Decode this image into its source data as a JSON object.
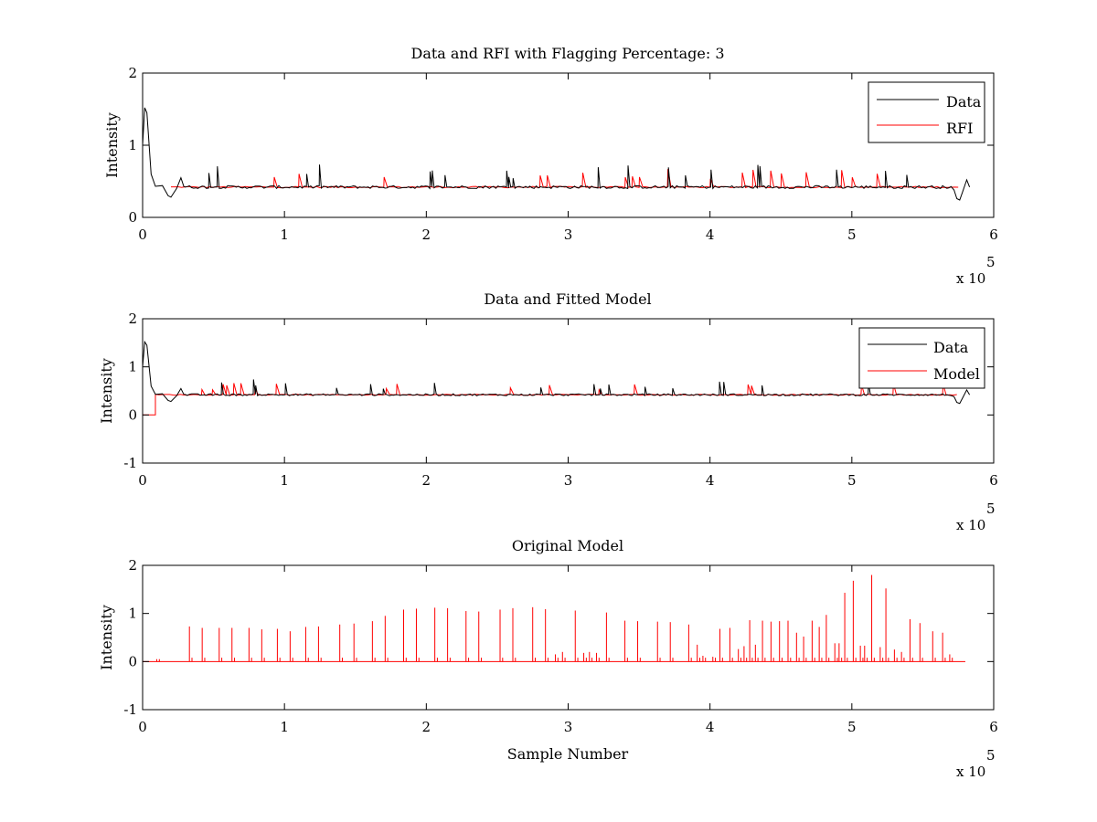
{
  "chart_data": [
    {
      "type": "line",
      "title": "Data and RFI with Flagging Percentage: 3",
      "xlabel": "",
      "ylabel": "Intensity",
      "xlim": [
        0,
        600000
      ],
      "ylim": [
        0,
        2
      ],
      "xticks": [
        "0",
        "1",
        "2",
        "3",
        "4",
        "5",
        "6"
      ],
      "yticks": [
        "0",
        "1",
        "2"
      ],
      "x_exponent_base": "x 10",
      "x_exponent_power": "5",
      "legend": {
        "position": "top-right",
        "entries": [
          "Data",
          "RFI"
        ]
      },
      "grid": false,
      "series": [
        {
          "name": "Data",
          "color": "#000000",
          "baseline": 0.42,
          "features": {
            "start_peak": 1.52,
            "start_dip": 0.28,
            "end_dip": 0.24,
            "end_value": 0.52
          }
        },
        {
          "name": "RFI",
          "color": "#ff0000",
          "baseline": 0.42
        }
      ]
    },
    {
      "type": "line",
      "title": "Data and Fitted Model",
      "xlabel": "",
      "ylabel": "Intensity",
      "xlim": [
        0,
        600000
      ],
      "ylim": [
        -1,
        2
      ],
      "xticks": [
        "0",
        "1",
        "2",
        "3",
        "4",
        "5",
        "6"
      ],
      "yticks": [
        "-1",
        "0",
        "1",
        "2"
      ],
      "x_exponent_base": "x 10",
      "x_exponent_power": "5",
      "legend": {
        "position": "top-right",
        "entries": [
          "Data",
          "Model"
        ]
      },
      "grid": false,
      "series": [
        {
          "name": "Data",
          "color": "#000000",
          "baseline": 0.42
        },
        {
          "name": "Model",
          "color": "#ff0000",
          "baseline": 0.42,
          "initial_value": 0.0,
          "step_at": 9000
        }
      ]
    },
    {
      "type": "line",
      "title": "Original Model",
      "xlabel": "Sample Number",
      "ylabel": "Intensity",
      "xlim": [
        0,
        600000
      ],
      "ylim": [
        -1,
        2
      ],
      "xticks": [
        "0",
        "1",
        "2",
        "3",
        "4",
        "5",
        "6"
      ],
      "yticks": [
        "-1",
        "0",
        "1",
        "2"
      ],
      "x_exponent_base": "x 10",
      "x_exponent_power": "5",
      "grid": false,
      "series": [
        {
          "color": "#ff0000",
          "baseline": 0.0,
          "x_end": 580000,
          "spikes": [
            [
              10000,
              0.05
            ],
            [
              33000,
              0.73
            ],
            [
              42000,
              0.7
            ],
            [
              54000,
              0.7
            ],
            [
              63000,
              0.7
            ],
            [
              75000,
              0.7
            ],
            [
              84000,
              0.67
            ],
            [
              95000,
              0.68
            ],
            [
              104000,
              0.63
            ],
            [
              115000,
              0.72
            ],
            [
              124000,
              0.73
            ],
            [
              139000,
              0.77
            ],
            [
              149000,
              0.79
            ],
            [
              162000,
              0.84
            ],
            [
              171000,
              0.95
            ],
            [
              184000,
              1.08
            ],
            [
              193000,
              1.1
            ],
            [
              206000,
              1.12
            ],
            [
              215000,
              1.11
            ],
            [
              228000,
              1.05
            ],
            [
              237000,
              1.04
            ],
            [
              252000,
              1.08
            ],
            [
              261000,
              1.11
            ],
            [
              275000,
              1.13
            ],
            [
              284000,
              1.09
            ],
            [
              291000,
              0.15
            ],
            [
              296000,
              0.2
            ],
            [
              305000,
              1.06
            ],
            [
              311000,
              0.18
            ],
            [
              315000,
              0.2
            ],
            [
              320000,
              0.18
            ],
            [
              327000,
              1.02
            ],
            [
              340000,
              0.85
            ],
            [
              349000,
              0.84
            ],
            [
              363000,
              0.83
            ],
            [
              372000,
              0.82
            ],
            [
              385000,
              0.77
            ],
            [
              391000,
              0.35
            ],
            [
              395000,
              0.12
            ],
            [
              402000,
              0.1
            ],
            [
              407000,
              0.68
            ],
            [
              414000,
              0.7
            ],
            [
              420000,
              0.26
            ],
            [
              424000,
              0.32
            ],
            [
              428000,
              0.86
            ],
            [
              432000,
              0.35
            ],
            [
              437000,
              0.85
            ],
            [
              443000,
              0.83
            ],
            [
              449000,
              0.84
            ],
            [
              455000,
              0.85
            ],
            [
              461000,
              0.6
            ],
            [
              466000,
              0.52
            ],
            [
              472000,
              0.85
            ],
            [
              477000,
              0.72
            ],
            [
              482000,
              0.97
            ],
            [
              488000,
              0.38
            ],
            [
              491000,
              0.38
            ],
            [
              495000,
              1.43
            ],
            [
              501000,
              1.68
            ],
            [
              506000,
              0.33
            ],
            [
              509000,
              0.33
            ],
            [
              514000,
              1.8
            ],
            [
              520000,
              0.3
            ],
            [
              524000,
              1.52
            ],
            [
              530000,
              0.25
            ],
            [
              535000,
              0.2
            ],
            [
              541000,
              0.88
            ],
            [
              548000,
              0.8
            ],
            [
              557000,
              0.63
            ],
            [
              564000,
              0.6
            ],
            [
              569000,
              0.15
            ]
          ]
        }
      ]
    }
  ]
}
